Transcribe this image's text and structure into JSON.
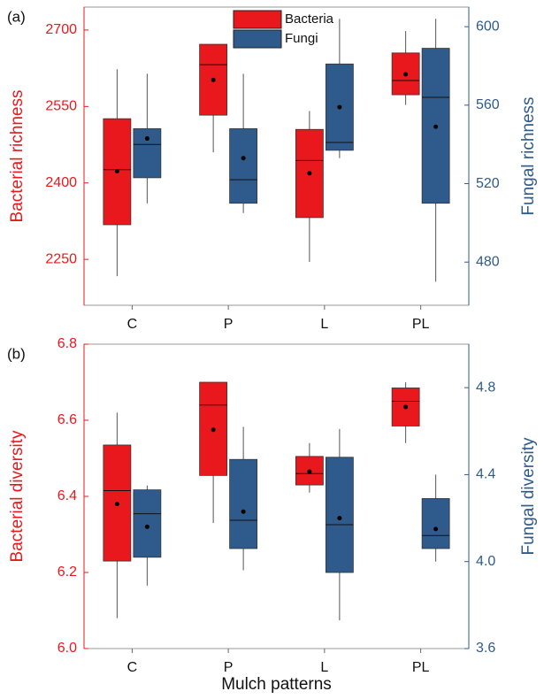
{
  "chart_data": [
    {
      "type": "box",
      "panel_label": "(a)",
      "ylabel": "Bacterial richness",
      "y2label": "Fungal richness",
      "categories": [
        "C",
        "P",
        "L",
        "PL"
      ],
      "ylim": [
        2160,
        2745
      ],
      "yticks": [
        2250,
        2400,
        2550,
        2700
      ],
      "y2lim": [
        458,
        610
      ],
      "y2ticks": [
        480,
        520,
        560,
        600
      ],
      "legend": "top",
      "series": [
        {
          "name": "Bacteria",
          "color": "#e8181d",
          "boxes": [
            {
              "whislo": 2217,
              "q1": 2318,
              "med": 2426,
              "q3": 2526,
              "whishi": 2623,
              "mean": 2423
            },
            {
              "whislo": 2460,
              "q1": 2533,
              "med": 2632,
              "q3": 2672,
              "whishi": 2672,
              "mean": 2602
            },
            {
              "whislo": 2245,
              "q1": 2332,
              "med": 2444,
              "q3": 2505,
              "whishi": 2541,
              "mean": 2419
            },
            {
              "whislo": 2553,
              "q1": 2573,
              "med": 2601,
              "q3": 2655,
              "whishi": 2698,
              "mean": 2613
            }
          ]
        },
        {
          "name": "Fungi",
          "color": "#2e5b8c",
          "axis": "y2",
          "boxes": [
            {
              "whislo": 510,
              "q1": 523,
              "med": 540,
              "q3": 548,
              "whishi": 576,
              "mean": 543
            },
            {
              "whislo": 505,
              "q1": 510,
              "med": 522,
              "q3": 548,
              "whishi": 576,
              "mean": 533
            },
            {
              "whislo": 533,
              "q1": 537,
              "med": 541,
              "q3": 581,
              "whishi": 604,
              "mean": 559
            },
            {
              "whislo": 470,
              "q1": 510,
              "med": 564,
              "q3": 589,
              "whishi": 604,
              "mean": 549
            }
          ]
        }
      ]
    },
    {
      "type": "box",
      "panel_label": "(b)",
      "ylabel": "Bacterial diversity",
      "y2label": "Fungal diversity",
      "xlabel": "Mulch patterns",
      "categories": [
        "C",
        "P",
        "L",
        "PL"
      ],
      "ylim": [
        6.0,
        6.8
      ],
      "yticks": [
        {
          "value": 6,
          "label": "6.0"
        },
        6.2,
        6.4,
        6.6,
        6.8
      ],
      "y2lim": [
        3.6,
        5.0
      ],
      "y2ticks": [
        3.6,
        {
          "value": 4,
          "label": "4.0"
        },
        4.4,
        4.8
      ],
      "series": [
        {
          "color": "#e8181d",
          "boxes": [
            {
              "whislo": 6.08,
              "q1": 6.23,
              "med": 6.415,
              "q3": 6.535,
              "whishi": 6.62,
              "mean": 6.38
            },
            {
              "whislo": 6.33,
              "q1": 6.455,
              "med": 6.64,
              "q3": 6.7,
              "whishi": 6.7,
              "mean": 6.575
            },
            {
              "whislo": 6.41,
              "q1": 6.43,
              "med": 6.46,
              "q3": 6.505,
              "whishi": 6.54,
              "mean": 6.465
            },
            {
              "whislo": 6.54,
              "q1": 6.585,
              "med": 6.65,
              "q3": 6.685,
              "whishi": 6.7,
              "mean": 6.635
            }
          ]
        },
        {
          "color": "#2e5b8c",
          "axis": "y2",
          "boxes": [
            {
              "whislo": 3.89,
              "q1": 4.02,
              "med": 4.22,
              "q3": 4.33,
              "whishi": 4.35,
              "mean": 4.16
            },
            {
              "whislo": 3.96,
              "q1": 4.06,
              "med": 4.19,
              "q3": 4.47,
              "whishi": 4.62,
              "mean": 4.23
            },
            {
              "whislo": 3.73,
              "q1": 3.95,
              "med": 4.17,
              "q3": 4.48,
              "whishi": 4.61,
              "mean": 4.2
            },
            {
              "whislo": 4.0,
              "q1": 4.06,
              "med": 4.12,
              "q3": 4.29,
              "whishi": 4.4,
              "mean": 4.15
            }
          ]
        }
      ]
    }
  ]
}
